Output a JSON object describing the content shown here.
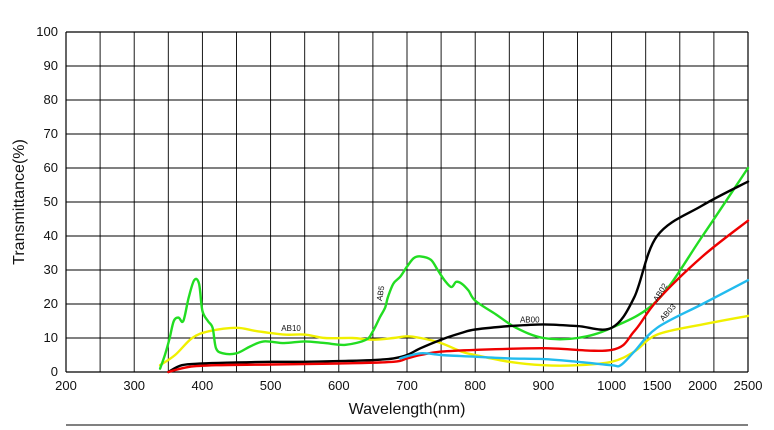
{
  "chart_data": {
    "type": "line",
    "xlabel": "Wavelength(nm)",
    "ylabel": "Transmittance(%)",
    "ylim": [
      0,
      100
    ],
    "grid": true,
    "x_tick_labels": [
      "200",
      "300",
      "400",
      "500",
      "600",
      "700",
      "800",
      "900",
      "1000",
      "1500",
      "2000",
      "2500"
    ],
    "y_tick_labels": [
      "0",
      "10",
      "20",
      "30",
      "40",
      "50",
      "60",
      "70",
      "80",
      "90",
      "100"
    ],
    "series": [
      {
        "name": "AB10",
        "color": "#f0f000",
        "points": [
          [
            338,
            2
          ],
          [
            360,
            5
          ],
          [
            385,
            10
          ],
          [
            410,
            12
          ],
          [
            450,
            13
          ],
          [
            480,
            12
          ],
          [
            520,
            11
          ],
          [
            550,
            11
          ],
          [
            580,
            10
          ],
          [
            620,
            10
          ],
          [
            650,
            9.5
          ],
          [
            680,
            10
          ],
          [
            700,
            10.5
          ],
          [
            720,
            10
          ],
          [
            750,
            8.5
          ],
          [
            780,
            6
          ],
          [
            800,
            5
          ],
          [
            850,
            3
          ],
          [
            900,
            2
          ],
          [
            950,
            2
          ],
          [
            1000,
            3
          ],
          [
            1250,
            6
          ],
          [
            1500,
            11
          ],
          [
            2000,
            14
          ],
          [
            2500,
            16.5
          ]
        ]
      },
      {
        "name": "AB5",
        "color": "#22dd22",
        "points": [
          [
            338,
            1
          ],
          [
            345,
            5
          ],
          [
            352,
            10
          ],
          [
            358,
            15
          ],
          [
            365,
            16
          ],
          [
            372,
            15
          ],
          [
            380,
            22
          ],
          [
            388,
            27
          ],
          [
            395,
            26
          ],
          [
            400,
            18
          ],
          [
            408,
            15
          ],
          [
            415,
            13
          ],
          [
            420,
            7
          ],
          [
            430,
            5.5
          ],
          [
            450,
            5.5
          ],
          [
            470,
            7.5
          ],
          [
            490,
            9
          ],
          [
            520,
            8.5
          ],
          [
            550,
            9
          ],
          [
            580,
            8.5
          ],
          [
            610,
            8
          ],
          [
            640,
            9.5
          ],
          [
            650,
            12
          ],
          [
            660,
            16
          ],
          [
            668,
            19
          ],
          [
            672,
            22
          ],
          [
            680,
            26
          ],
          [
            690,
            28
          ],
          [
            700,
            31
          ],
          [
            710,
            33.5
          ],
          [
            720,
            34
          ],
          [
            735,
            33
          ],
          [
            745,
            30
          ],
          [
            755,
            27
          ],
          [
            765,
            25
          ],
          [
            772,
            26.5
          ],
          [
            780,
            26
          ],
          [
            790,
            24
          ],
          [
            800,
            21
          ],
          [
            830,
            17
          ],
          [
            860,
            13
          ],
          [
            900,
            10
          ],
          [
            950,
            10
          ],
          [
            1000,
            13
          ],
          [
            1500,
            21
          ],
          [
            2000,
            40
          ],
          [
            2500,
            60
          ]
        ]
      },
      {
        "name": "AB00",
        "color": "#000000",
        "points": [
          [
            350,
            0
          ],
          [
            370,
            2
          ],
          [
            400,
            2.5
          ],
          [
            450,
            2.8
          ],
          [
            500,
            3
          ],
          [
            550,
            3
          ],
          [
            600,
            3.2
          ],
          [
            650,
            3.5
          ],
          [
            680,
            4
          ],
          [
            700,
            5
          ],
          [
            720,
            7
          ],
          [
            750,
            9.5
          ],
          [
            780,
            11.5
          ],
          [
            800,
            12.5
          ],
          [
            850,
            13.5
          ],
          [
            900,
            14
          ],
          [
            950,
            13.5
          ],
          [
            1000,
            13
          ],
          [
            1250,
            22
          ],
          [
            1500,
            40
          ],
          [
            2000,
            49
          ],
          [
            2500,
            56
          ]
        ]
      },
      {
        "name": "AB02",
        "color": "#ee0000",
        "points": [
          [
            350,
            0
          ],
          [
            380,
            1.5
          ],
          [
            420,
            2
          ],
          [
            500,
            2.2
          ],
          [
            600,
            2.5
          ],
          [
            680,
            3
          ],
          [
            700,
            4
          ],
          [
            720,
            5
          ],
          [
            750,
            6
          ],
          [
            800,
            6.5
          ],
          [
            900,
            7
          ],
          [
            1000,
            6.5
          ],
          [
            1250,
            12
          ],
          [
            1500,
            21
          ],
          [
            2000,
            34
          ],
          [
            2500,
            44.5
          ]
        ]
      },
      {
        "name": "AB03",
        "color": "#22bbee",
        "points": [
          [
            690,
            4
          ],
          [
            720,
            5.5
          ],
          [
            750,
            5
          ],
          [
            800,
            4.5
          ],
          [
            850,
            4
          ],
          [
            900,
            3.8
          ],
          [
            950,
            3
          ],
          [
            1000,
            2
          ],
          [
            1100,
            2
          ],
          [
            1250,
            6
          ],
          [
            1500,
            13
          ],
          [
            2000,
            20
          ],
          [
            2500,
            27
          ]
        ]
      }
    ]
  }
}
